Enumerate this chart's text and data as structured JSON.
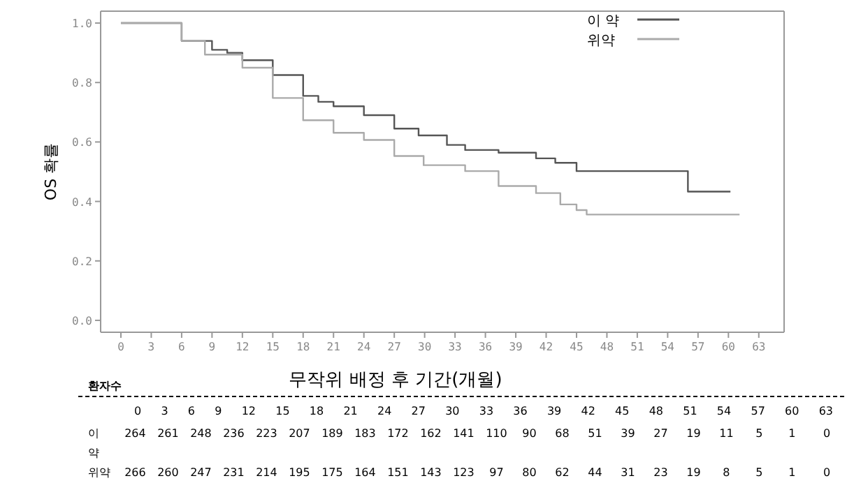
{
  "chart_data": [
    {
      "type": "step",
      "xlabel": "무작위 배정 후 기간(개월)",
      "ylabel": "OS 확률",
      "xlim": [
        -2,
        65.5
      ],
      "ylim": [
        -0.04,
        1.04
      ],
      "xticks": [
        0,
        3,
        6,
        9,
        12,
        15,
        18,
        21,
        24,
        27,
        30,
        33,
        36,
        39,
        42,
        45,
        48,
        51,
        54,
        57,
        60,
        63
      ],
      "yticks": [
        {
          "value": 0,
          "label": "0.0"
        },
        0.2,
        0.4,
        0.6,
        0.8,
        {
          "value": 1,
          "label": "1.0"
        }
      ],
      "grid": false,
      "legend": "top right",
      "marker": "none",
      "line_style": "solid",
      "series": [
        {
          "name": "이 약",
          "color": "#555555",
          "x": [
            0,
            2.7,
            6,
            9,
            10.5,
            12,
            15,
            18,
            19.5,
            21,
            24,
            27,
            29.4,
            32.2,
            34,
            37.3,
            41,
            42.9,
            45,
            56,
            60.2
          ],
          "values": [
            1,
            1,
            0.94,
            0.91,
            0.9,
            0.875,
            0.825,
            0.755,
            0.735,
            0.72,
            0.69,
            0.645,
            0.622,
            0.59,
            0.573,
            0.564,
            0.545,
            0.53,
            0.502,
            0.433,
            0.433
          ]
        },
        {
          "name": "위약",
          "color": "#aaaaaa",
          "x": [
            0,
            2.7,
            6,
            8.3,
            12,
            15,
            18,
            21,
            24,
            27,
            29.9,
            34,
            37.3,
            41,
            43.4,
            45,
            46,
            61.1
          ],
          "values": [
            1,
            1,
            0.94,
            0.894,
            0.85,
            0.748,
            0.673,
            0.631,
            0.607,
            0.553,
            0.522,
            0.502,
            0.452,
            0.428,
            0.39,
            0.371,
            0.356,
            0.356
          ]
        }
      ]
    },
    {
      "type": "other",
      "annotations": [
        "환자수",
        "0 3 6 9 12 15 18 21 24 27 30 33 36 39 42 45 48 51 54 57 60 63",
        "이 약",
        "264 261 248 236 223 207 189 183 172 162 141 110 90 68 51 39 27 19 11 5 1 0",
        "위약",
        "266 260 247 231 214 195 175 164 151 143 123 97 80 62 44 31 23 19 8 5 1 0"
      ]
    }
  ]
}
